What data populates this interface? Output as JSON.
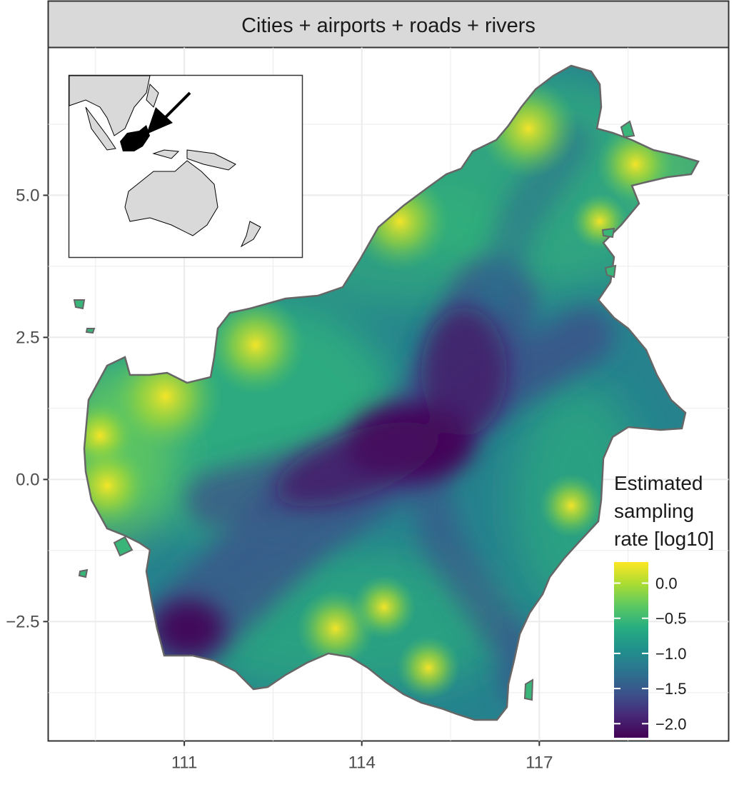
{
  "facet_strip": {
    "title": "Cities + airports + roads + rivers"
  },
  "axes": {
    "x": {
      "ticks": [
        111,
        114,
        117
      ],
      "tick_labels": [
        "111",
        "114",
        "117"
      ],
      "range": [
        108.7,
        120.2
      ]
    },
    "y": {
      "ticks": [
        5.0,
        2.5,
        0.0,
        -2.5
      ],
      "tick_labels": [
        "5.0",
        "2.5",
        "0.0",
        "−2.5"
      ],
      "range": [
        -4.6,
        7.6
      ]
    },
    "grid": true
  },
  "legend": {
    "title_lines": [
      "Estimated",
      "sampling",
      "rate [log10]"
    ],
    "placement": "bottom-right",
    "range": [
      -2.2,
      0.3
    ],
    "ticks": [
      0.0,
      -0.5,
      -1.0,
      -1.5,
      -2.0
    ],
    "tick_labels": [
      "0.0",
      "−0.5",
      "−1.0",
      "−1.5",
      "−2.0"
    ],
    "colors": [
      "#440154",
      "#472878",
      "#3b528b",
      "#2c728e",
      "#21908d",
      "#27ad81",
      "#5cc863",
      "#aadc32",
      "#fde725"
    ]
  },
  "inset": {
    "highlight": "Borneo",
    "arrow": true
  },
  "colors": {
    "panel_border": "#333333",
    "strip_fill": "#d9d9d9",
    "grid": "#ebebeb",
    "coast": "#666666"
  }
}
